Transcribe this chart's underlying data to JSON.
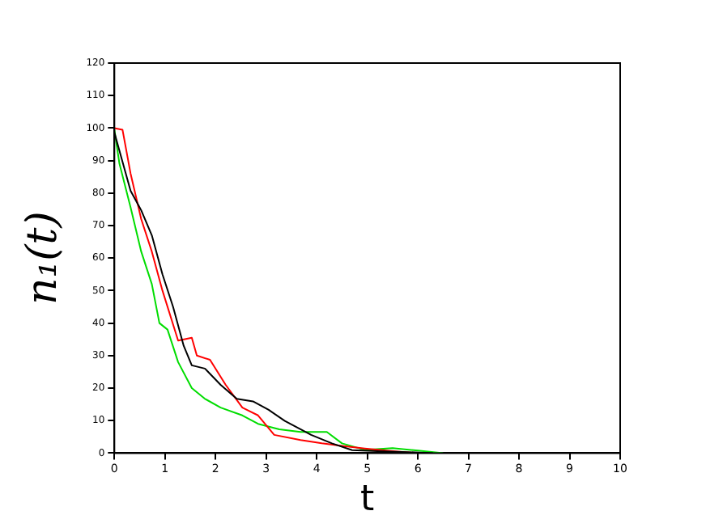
{
  "chart_data": {
    "type": "line",
    "xlabel": "t",
    "ylabel": "n₁(t)",
    "xlim": [
      0,
      10
    ],
    "ylim": [
      0,
      120
    ],
    "xticks": [
      0,
      1,
      2,
      3,
      4,
      5,
      6,
      7,
      8,
      9,
      10
    ],
    "yticks": [
      0,
      10,
      20,
      30,
      40,
      50,
      60,
      70,
      80,
      90,
      100,
      110,
      120
    ],
    "grid": false,
    "legend": false,
    "marker": "none",
    "line_style": "solid",
    "series": [
      {
        "color": "#000000",
        "x": [
          0,
          0.32,
          0.53,
          0.74,
          0.95,
          1.16,
          1.37,
          1.53,
          1.79,
          2.1,
          2.42,
          2.74,
          3.05,
          3.37,
          3.89,
          4.3,
          4.7,
          5.2,
          5.8,
          6.3
        ],
        "values": [
          98.6,
          80.7,
          74.7,
          67,
          55,
          45,
          33,
          27,
          26,
          21,
          16.7,
          15.9,
          13.3,
          9.9,
          5.6,
          3,
          0.9,
          0.6,
          0.3,
          0
        ]
      },
      {
        "color": "#ff0000",
        "x": [
          0,
          0.16,
          0.32,
          0.53,
          0.74,
          0.95,
          1.26,
          1.53,
          1.63,
          1.89,
          2.2,
          2.53,
          2.84,
          3.16,
          3.68,
          4.1,
          4.5,
          4.95,
          5.5,
          6.0
        ],
        "values": [
          100,
          99.5,
          86,
          72,
          62,
          50,
          34.6,
          35.5,
          30,
          28.7,
          21,
          14,
          11.6,
          5.6,
          4,
          3,
          2.2,
          1.4,
          0.6,
          0
        ]
      },
      {
        "color": "#00dd00",
        "x": [
          0,
          0.1,
          0.32,
          0.53,
          0.74,
          0.89,
          1.05,
          1.26,
          1.53,
          1.79,
          2.1,
          2.53,
          2.84,
          3.26,
          3.68,
          4.2,
          4.5,
          4.95,
          5.5,
          6.0,
          6.5
        ],
        "values": [
          99.5,
          89,
          75.6,
          62,
          52,
          40,
          38,
          28,
          20,
          16.7,
          14,
          11.6,
          9,
          7.3,
          6.5,
          6.5,
          3,
          1,
          1.5,
          0.8,
          0
        ]
      }
    ]
  }
}
